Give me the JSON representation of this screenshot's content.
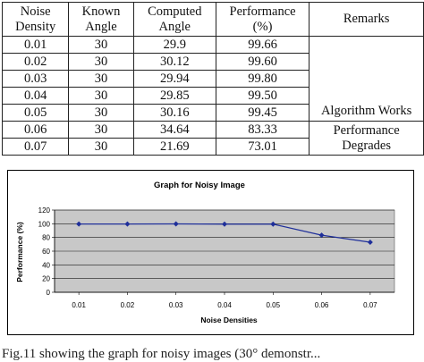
{
  "table": {
    "headers": [
      [
        "Noise",
        "Density"
      ],
      [
        "Known",
        "Angle"
      ],
      [
        "Computed",
        "Angle"
      ],
      [
        "Performance",
        "(%)"
      ],
      [
        "Remarks"
      ]
    ],
    "rows": [
      [
        "0.01",
        "30",
        "29.9",
        "99.66"
      ],
      [
        "0.02",
        "30",
        "30.12",
        "99.60"
      ],
      [
        "0.03",
        "30",
        "29.94",
        "99.80"
      ],
      [
        "0.04",
        "30",
        "29.85",
        "99.50"
      ],
      [
        "0.05",
        "30",
        "30.16",
        "99.45"
      ],
      [
        "0.06",
        "30",
        "34.64",
        "83.33"
      ],
      [
        "0.07",
        "30",
        "21.69",
        "73.01"
      ]
    ],
    "remarks_works": "Algorithm Works",
    "remarks_degrades": [
      "Performance",
      "Degrades"
    ]
  },
  "chart_data": {
    "type": "line",
    "title": "Graph for Noisy Image",
    "xlabel": "Noise Densities",
    "ylabel": "Performance (%)",
    "categories": [
      "0.01",
      "0.02",
      "0.03",
      "0.04",
      "0.05",
      "0.06",
      "0.07"
    ],
    "values": [
      99.66,
      99.6,
      99.8,
      99.5,
      99.45,
      83.33,
      73.01
    ],
    "ylim": [
      0,
      120
    ],
    "yticks": [
      "0",
      "20",
      "40",
      "60",
      "80",
      "100",
      "120"
    ],
    "grid": true,
    "colors": {
      "line": "#1f2f9a",
      "plot_bg": "#c8c8c8",
      "grid": "#1a1a1a"
    }
  },
  "caption": "Fig.11 showing the graph for noisy images (30° demonstr..."
}
